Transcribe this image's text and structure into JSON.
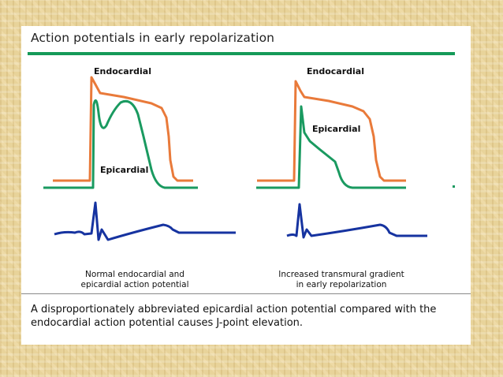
{
  "title": "Action potentials in early repolarization",
  "left_panel": {
    "endocardial_label": "Endocardial",
    "epicardial_label": "Epicardial",
    "caption_line1": "Normal endocardial and",
    "caption_line2": "epicardial action potential"
  },
  "right_panel": {
    "endocardial_label": "Endocardial",
    "epicardial_label": "Epicardial",
    "caption_line1": "Increased transmural gradient",
    "caption_line2": "in early repolarization"
  },
  "description": "A disproportionately abbreviated epicardial action potential compared with the endocardial action potential causes J-point elevation.",
  "colors": {
    "endocardial": "#e97a3a",
    "epicardial": "#1a9a60",
    "ecg": "#1633a0",
    "accent_rule": "#159a58"
  }
}
